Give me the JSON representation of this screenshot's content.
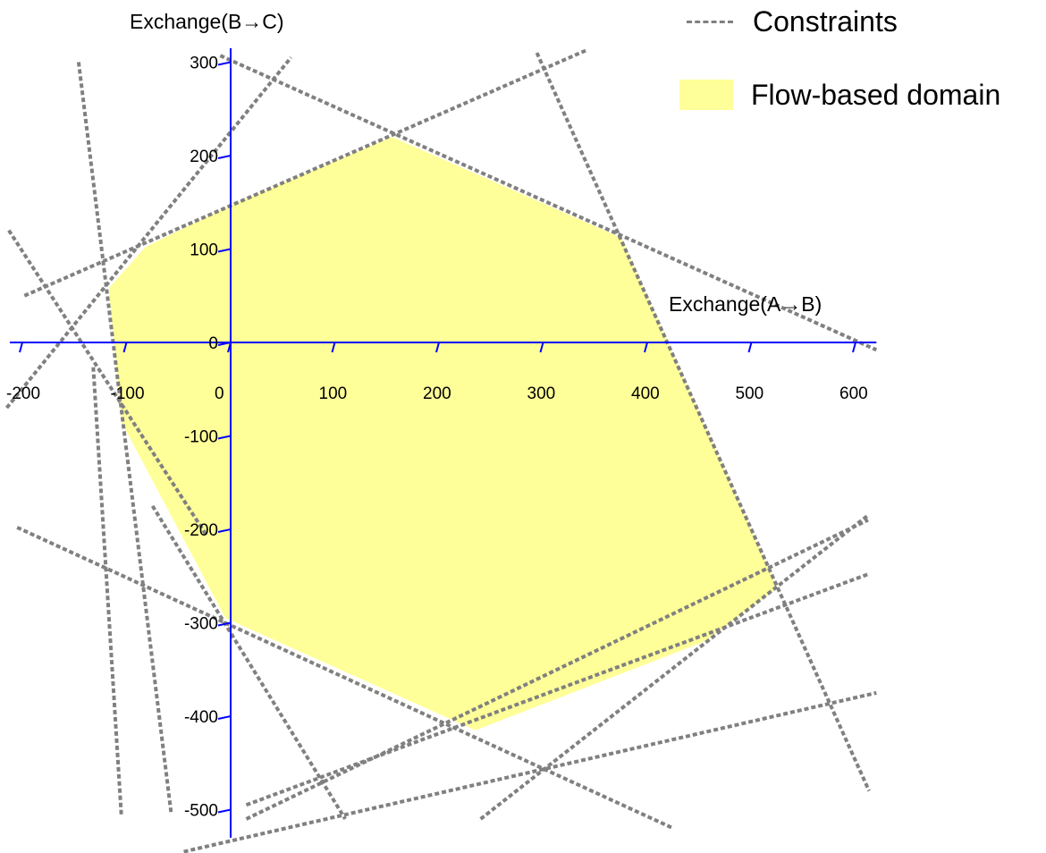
{
  "chart_data": {
    "type": "line",
    "xlabel": "Exchange(A→B)",
    "ylabel": "Exchange(B→C)",
    "xlim": [
      -212,
      620
    ],
    "ylim": [
      -530,
      315
    ],
    "x_ticks": [
      -200,
      -100,
      0,
      100,
      200,
      300,
      400,
      500,
      600
    ],
    "y_ticks": [
      300,
      200,
      100,
      0,
      -100,
      -200,
      -300,
      -400,
      -500
    ],
    "grid": false,
    "legend_position": "top-right",
    "legend": [
      {
        "label": "Constraints",
        "style": "dashed-line",
        "color": "#808080"
      },
      {
        "label": "Flow-based domain",
        "style": "filled-area",
        "color": "#ffff99"
      }
    ],
    "domain_polygon": [
      [
        155,
        220
      ],
      [
        375,
        112
      ],
      [
        525,
        -263
      ],
      [
        455,
        -320
      ],
      [
        235,
        -415
      ],
      [
        -5,
        -295
      ],
      [
        -105,
        -85
      ],
      [
        -117,
        58
      ],
      [
        -82,
        102
      ],
      [
        0,
        147
      ]
    ],
    "constraints": [
      [
        [
          -198,
          50
        ],
        [
          342,
          313
        ]
      ],
      [
        [
          -215,
          -70
        ],
        [
          58,
          305
        ]
      ],
      [
        [
          -146,
          300
        ],
        [
          -57,
          -505
        ]
      ],
      [
        [
          -213,
          120
        ],
        [
          -24,
          -205
        ]
      ],
      [
        [
          -105,
          -505
        ],
        [
          -132,
          -25
        ]
      ],
      [
        [
          -10,
          307
        ],
        [
          620,
          -8
        ]
      ],
      [
        [
          294,
          310
        ],
        [
          613,
          -480
        ]
      ],
      [
        [
          -205,
          -198
        ],
        [
          425,
          -520
        ]
      ],
      [
        [
          -75,
          -175
        ],
        [
          110,
          -510
        ]
      ],
      [
        [
          15,
          -510
        ],
        [
          612,
          -190
        ]
      ],
      [
        [
          240,
          -510
        ],
        [
          612,
          -185
        ]
      ],
      [
        [
          15,
          -495
        ],
        [
          612,
          -248
        ]
      ],
      [
        [
          -45,
          -545
        ],
        [
          620,
          -375
        ]
      ]
    ]
  }
}
